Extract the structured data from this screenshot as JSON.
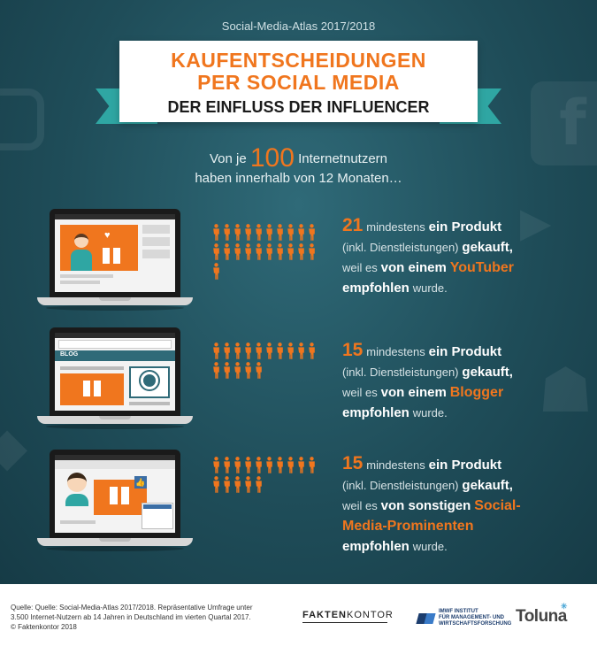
{
  "header": {
    "supertitle": "Social-Media-Atlas 2017/2018",
    "title_line1": "KAUFENTSCHEIDUNGEN",
    "title_line2": "PER SOCIAL MEDIA",
    "subtitle": "DER EINFLUSS DER INFLUENCER"
  },
  "intro": {
    "prefix": "Von je",
    "number": "100",
    "suffix": "Internetnutzern",
    "line2": "haben innerhalb von 12 Monaten…"
  },
  "stats": [
    {
      "value": 21,
      "label_number": "21",
      "t1": "mindestens",
      "t2": "ein Produkt",
      "t3": "(inkl. Dienstleistungen)",
      "t4": "gekauft,",
      "t5": "weil es",
      "t6": "von einem",
      "source": "YouTuber",
      "t7": "empfohlen",
      "t8": "wurde."
    },
    {
      "value": 15,
      "label_number": "15",
      "t1": "mindestens",
      "t2": "ein Produkt",
      "t3": "(inkl. Dienstleistungen)",
      "t4": "gekauft,",
      "t5": "weil es",
      "t6": "von einem",
      "source": "Blogger",
      "t7": "empfohlen",
      "t8": "wurde."
    },
    {
      "value": 15,
      "label_number": "15",
      "t1": "mindestens",
      "t2": "ein Produkt",
      "t3": "(inkl. Dienstleistungen)",
      "t4": "gekauft,",
      "t5": "weil es",
      "t6": "von sonstigen",
      "source_line1": "Social-",
      "source_line2": "Media-Prominenten",
      "t7": "empfohlen",
      "t8": "wurde."
    }
  ],
  "screen_labels": {
    "blog": "BLOG"
  },
  "footer": {
    "source_line1": "Quelle: Quelle: Social-Media-Atlas 2017/2018. Repräsentative Umfrage unter",
    "source_line2": "3.500 Internet-Nutzern ab 14 Jahren in Deutschland im vierten Quartal 2017.",
    "source_line3": "© Faktenkontor 2018",
    "logo_faktenkontor_bold": "FAKTEN",
    "logo_faktenkontor_thin": "KONTOR",
    "logo_imwf_line1": "IMWF INSTITUT",
    "logo_imwf_line2": "FÜR MANAGEMENT- UND",
    "logo_imwf_line3": "WIRTSCHAFTSFORSCHUNG",
    "logo_toluna": "Toluna"
  },
  "colors": {
    "accent": "#f0761e",
    "background": "#1f4d59",
    "ribbon": "#2fa6a3"
  }
}
